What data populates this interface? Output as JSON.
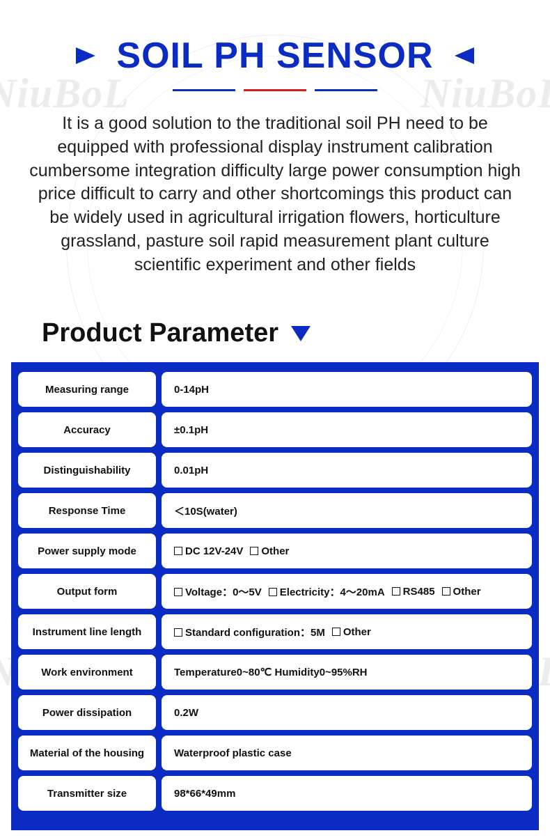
{
  "colors": {
    "primary_blue": "#0a2cc2",
    "accent_red": "#d62020",
    "text": "#111111",
    "background": "#ffffff",
    "watermark": "rgba(100,100,100,0.12)"
  },
  "watermark_text": "NiuBoL",
  "header": {
    "title": "SOIL PH SENSOR"
  },
  "description": "It is a good solution to the traditional soil PH need to be equipped with professional display instrument calibration cumbersome integration difficulty large power consumption high price difficult to carry and other shortcomings this product can be widely used in agricultural irrigation flowers, horticulture grassland, pasture soil rapid measurement plant culture scientific experiment and other fields",
  "section_heading": "Product Parameter",
  "parameters": [
    {
      "label": "Measuring range",
      "value": [
        {
          "text": "0-14pH"
        }
      ]
    },
    {
      "label": "Accuracy",
      "value": [
        {
          "text": "±0.1pH"
        }
      ]
    },
    {
      "label": "Distinguishability",
      "value": [
        {
          "text": "0.01pH"
        }
      ]
    },
    {
      "label": "Response Time",
      "value": [
        {
          "text": "＜10S(water)"
        }
      ]
    },
    {
      "label": "Power supply mode",
      "value": [
        {
          "checkbox": true,
          "text": "DC 12V-24V"
        },
        {
          "checkbox": true,
          "text": "Other"
        }
      ]
    },
    {
      "label": "Output form",
      "value": [
        {
          "checkbox": true,
          "text": "Voltage：0～5V"
        },
        {
          "checkbox": true,
          "text": "Electricity：4～20mA"
        },
        {
          "checkbox": true,
          "text": "RS485"
        },
        {
          "checkbox": true,
          "text": "Other"
        }
      ]
    },
    {
      "label": "Instrument line length",
      "value": [
        {
          "checkbox": true,
          "text": "Standard configuration：5M"
        },
        {
          "checkbox": true,
          "text": "Other"
        }
      ]
    },
    {
      "label": "Work environment",
      "value": [
        {
          "text": "Temperature0~80℃  Humidity0~95%RH"
        }
      ]
    },
    {
      "label": "Power dissipation",
      "value": [
        {
          "text": "0.2W"
        }
      ]
    },
    {
      "label": "Material of the housing",
      "value": [
        {
          "text": "Waterproof plastic case"
        }
      ]
    },
    {
      "label": "Transmitter size",
      "value": [
        {
          "text": "98*66*49mm"
        }
      ]
    }
  ]
}
